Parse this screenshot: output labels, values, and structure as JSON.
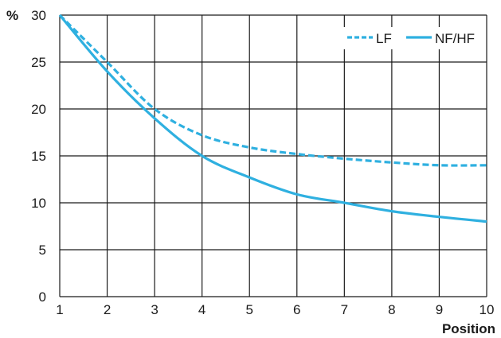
{
  "chart_data": {
    "type": "line",
    "ylabel": "%",
    "xlabel": "Position",
    "xlim": [
      1,
      10
    ],
    "ylim": [
      0,
      30
    ],
    "x_ticks": [
      1,
      2,
      3,
      4,
      5,
      6,
      7,
      8,
      9,
      10
    ],
    "y_ticks": [
      0,
      5,
      10,
      15,
      20,
      25,
      30
    ],
    "grid": true,
    "legend_position": "top-right",
    "x": [
      1,
      2,
      3,
      4,
      5,
      6,
      7,
      8,
      9,
      10
    ],
    "series": [
      {
        "name": "LF",
        "style": "dashed",
        "color": "#2fb0e0",
        "values": [
          30,
          25,
          20,
          17.2,
          15.9,
          15.2,
          14.7,
          14.3,
          14.0,
          14.0
        ]
      },
      {
        "name": "NF/HF",
        "style": "solid",
        "color": "#2fb0e0",
        "values": [
          30,
          24,
          19,
          15,
          12.7,
          10.9,
          10.0,
          9.1,
          8.5,
          8.0
        ]
      }
    ]
  }
}
